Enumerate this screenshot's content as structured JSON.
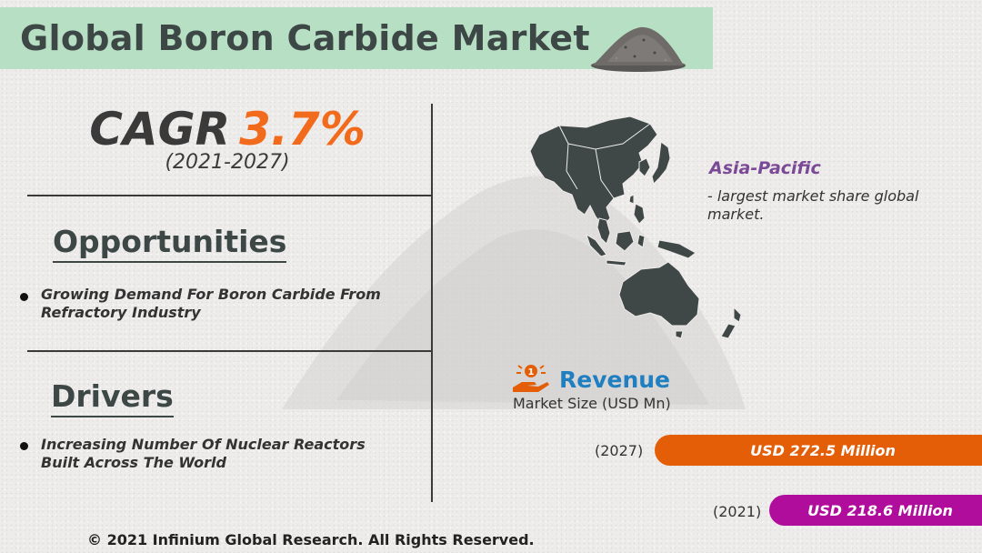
{
  "header": {
    "title": "Global Boron Carbide Market"
  },
  "cagr": {
    "label": "CAGR",
    "value": "3.7%",
    "years": "(2021-2027)"
  },
  "opportunities": {
    "title": "Opportunities",
    "items": [
      "Growing Demand For Boron Carbide From Refractory Industry"
    ]
  },
  "drivers": {
    "title": "Drivers",
    "items": [
      "Increasing Number Of Nuclear Reactors Built Across The World"
    ]
  },
  "region": {
    "name": "Asia-Pacific",
    "description": "- largest market share  global market."
  },
  "revenue": {
    "title": "Revenue",
    "subtitle": "Market Size (USD Mn)",
    "bars": [
      {
        "year": "(2027)",
        "label": "USD 272.5 Million",
        "value": 272.5
      },
      {
        "year": "(2021)",
        "label": "USD 218.6 Million",
        "value": 218.6
      }
    ]
  },
  "footer": {
    "copyright": "© 2021 Infinium Global Research. All Rights Reserved."
  },
  "colors": {
    "title_band": "#b7dfc4",
    "cagr_value": "#f26b1d",
    "region_name": "#7b4a96",
    "revenue_title": "#1f7fc1",
    "bar_2027": "#e35e07",
    "bar_2021": "#b00d9c"
  },
  "icons": [
    "powder-pile-icon",
    "asia-pacific-map",
    "revenue-hand-coin-icon"
  ]
}
